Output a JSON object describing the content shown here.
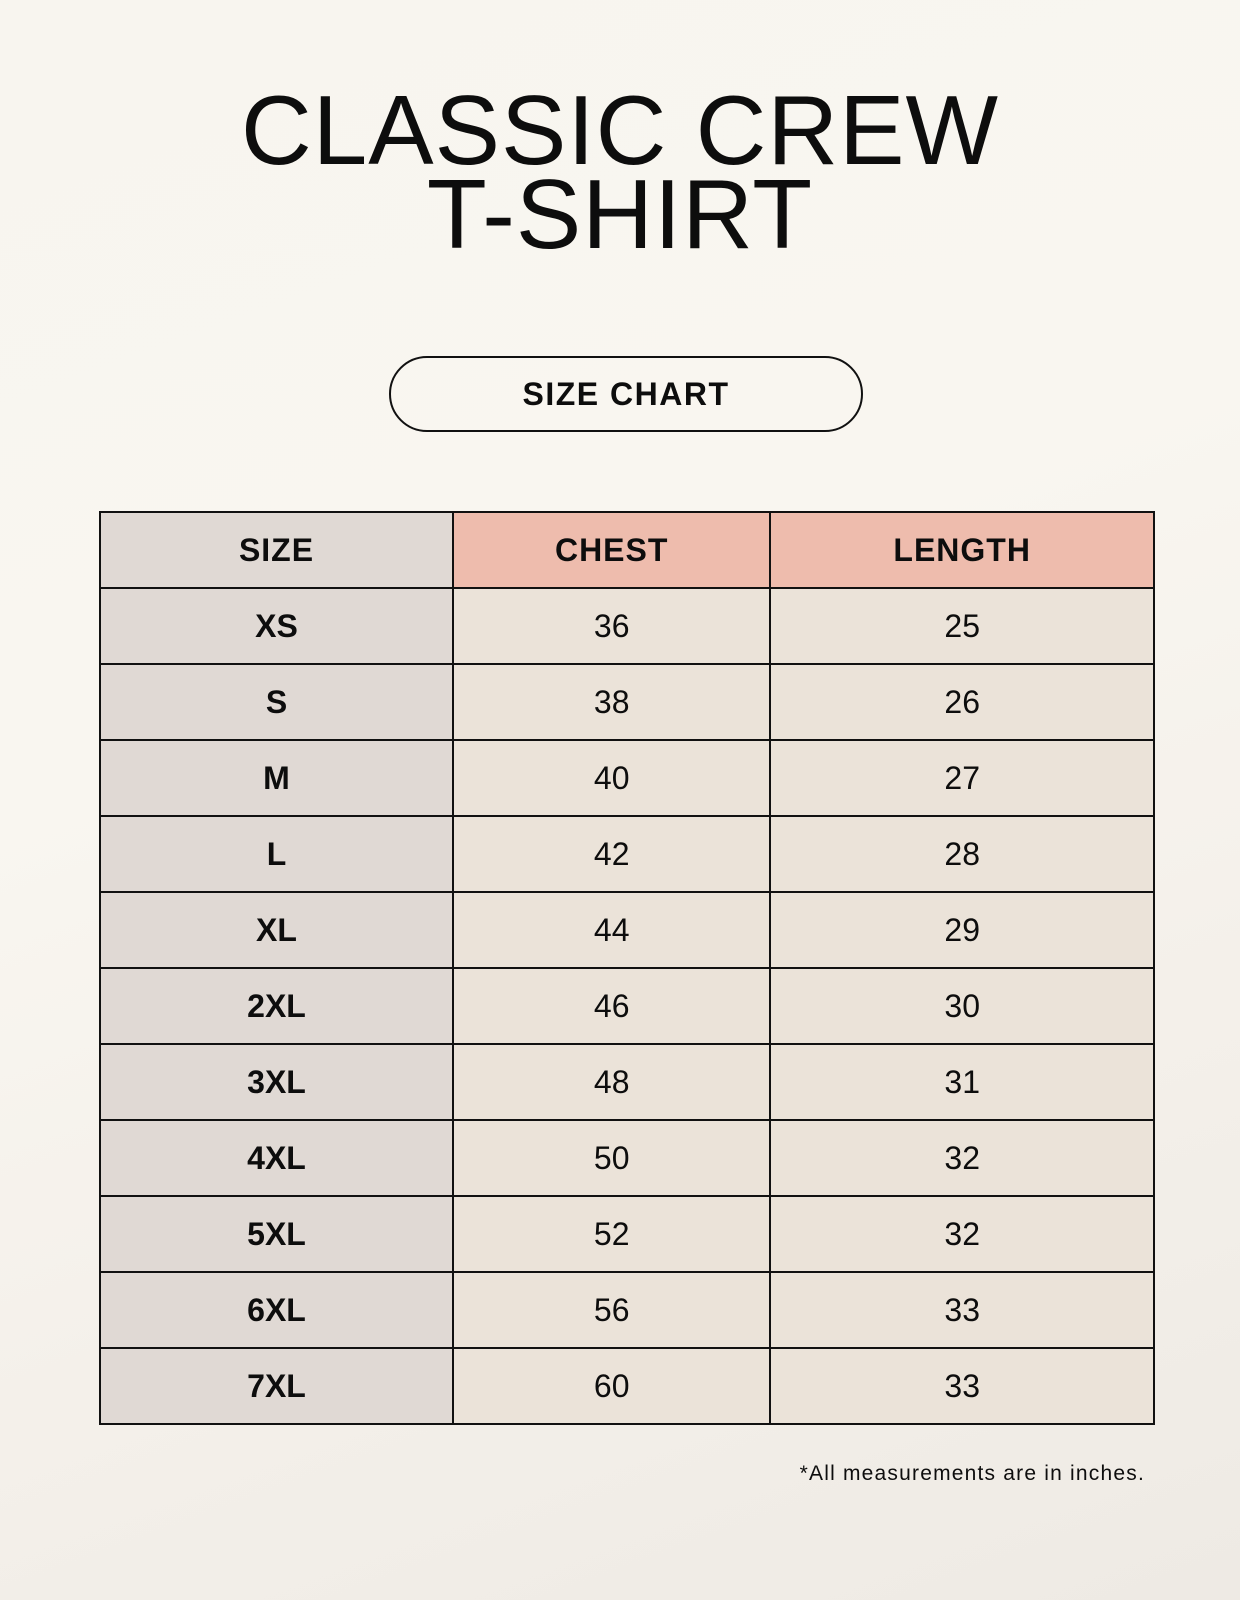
{
  "title_line1": "CLASSIC CREW",
  "title_line2": "T-SHIRT",
  "subtitle": "SIZE CHART",
  "table": {
    "headers": [
      "SIZE",
      "CHEST",
      "LENGTH"
    ],
    "rows": [
      [
        "XS",
        "36",
        "25"
      ],
      [
        "S",
        "38",
        "26"
      ],
      [
        "M",
        "40",
        "27"
      ],
      [
        "L",
        "42",
        "28"
      ],
      [
        "XL",
        "44",
        "29"
      ],
      [
        "2XL",
        "46",
        "30"
      ],
      [
        "3XL",
        "48",
        "31"
      ],
      [
        "4XL",
        "50",
        "32"
      ],
      [
        "5XL",
        "52",
        "32"
      ],
      [
        "6XL",
        "56",
        "33"
      ],
      [
        "7XL",
        "60",
        "33"
      ]
    ]
  },
  "footnote": "*All measurements are in inches.",
  "colors": {
    "size_column": "#e0d9d4",
    "header_accent": "#eebcad",
    "cell": "#ebe3d9"
  }
}
